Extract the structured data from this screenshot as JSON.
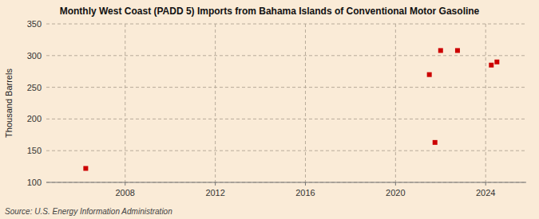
{
  "chart_data": {
    "type": "scatter",
    "title": "Monthly West Coast (PADD 5) Imports from Bahama Islands of Conventional Motor Gasoline",
    "y_label": "Thousand Barrels",
    "annotations": [
      "Source: U.S. Energy Information Administration"
    ],
    "x": [
      2006.25,
      2021.5,
      2021.75,
      2022.0,
      2022.75,
      2024.25,
      2024.5
    ],
    "values": [
      122,
      270,
      163,
      308,
      308,
      285,
      290
    ],
    "color": "#cc0000",
    "marker": "square",
    "xlim": [
      2004.5,
      2025.8
    ],
    "ylim": [
      100,
      350
    ],
    "xticks": [
      2008,
      2012,
      2016,
      2020,
      2024
    ],
    "yticks": [
      100,
      150,
      200,
      250,
      300,
      350
    ],
    "grid": true
  }
}
